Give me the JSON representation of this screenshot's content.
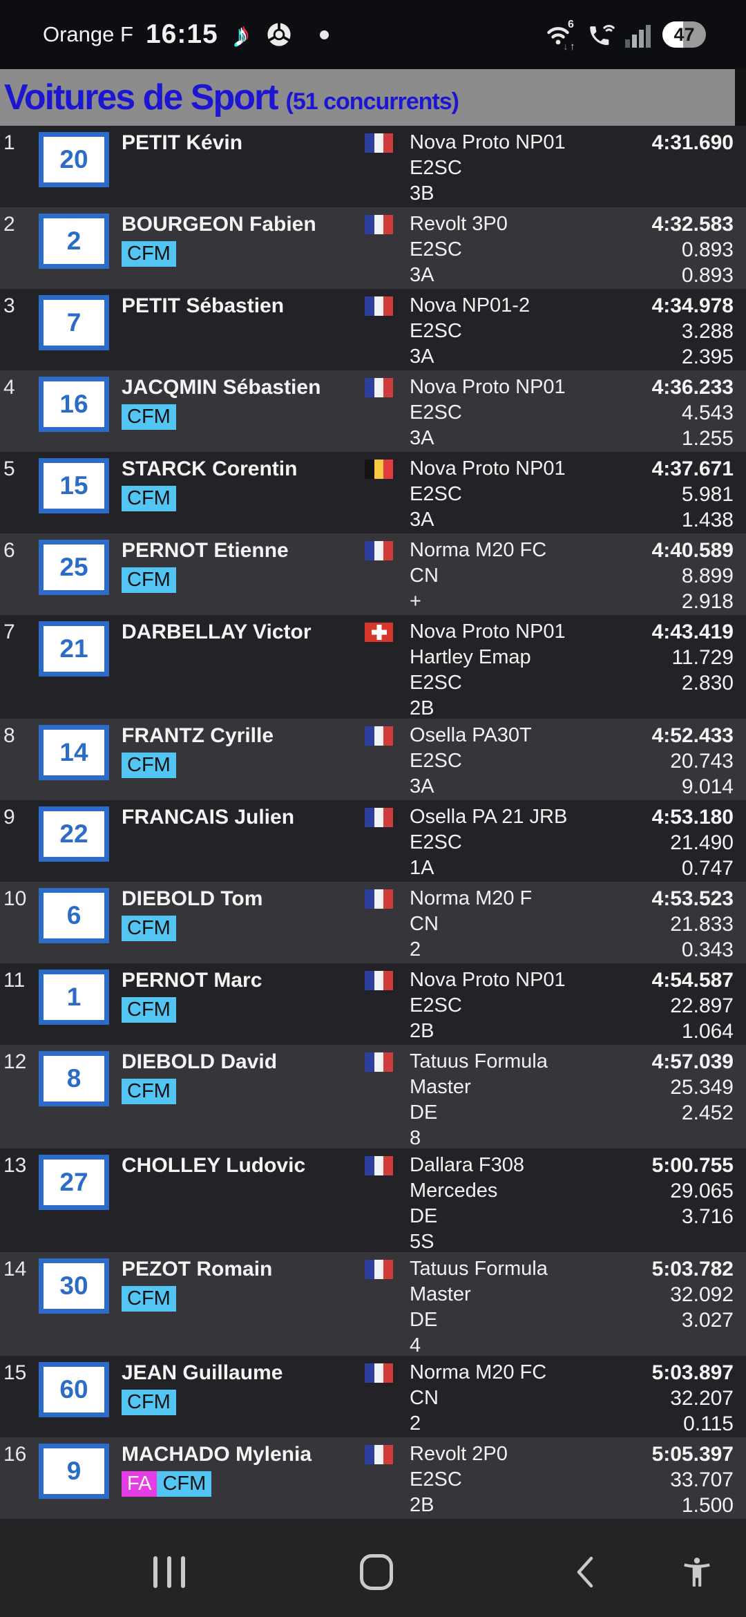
{
  "status_bar": {
    "carrier": "Orange F",
    "time": "16:15",
    "battery_percent": "47",
    "icons": [
      "tiktok-notification-icon",
      "chrome-notification-icon",
      "notification-dot-icon",
      "wifi-6-icon",
      "wifi-calling-icon",
      "signal-strength-icon",
      "battery-indicator"
    ]
  },
  "header": {
    "title": "Voitures de Sport",
    "subtitle": "(51 concurrents)"
  },
  "colors": {
    "accent-blue": "#2b6cc8",
    "header-bg": "#8c8c8c",
    "header-text": "#1c16d1",
    "row-dark": "#232327",
    "row-light": "#35353a",
    "text": "#f2f2f2",
    "status-bg": "#0c0e11",
    "nav-bg": "#242427",
    "nav-icon": "#c9cacc",
    "battery-track": "#9a9a9a"
  },
  "badge_styles": {
    "CFM": {
      "bg": "#52c5f2",
      "fg": "#111111"
    },
    "FA": {
      "bg": "#e53ce5",
      "fg": "#ffffff"
    }
  },
  "flags": {
    "fr": {
      "stripes": [
        "#2d3f9e",
        "#f2f2f2",
        "#d03c3c"
      ]
    },
    "be": {
      "stripes": [
        "#141414",
        "#f5c942",
        "#e23c3c"
      ]
    },
    "ch": {
      "bg": "#d8372c"
    }
  },
  "rows": [
    {
      "pos": "1",
      "num": "20",
      "name": "PETIT Kévin",
      "badges": [],
      "flag": "fr",
      "info_lines": [
        "Nova Proto NP01",
        "E2SC",
        "3B"
      ],
      "time_lines": [
        "4:31.690"
      ]
    },
    {
      "pos": "2",
      "num": "2",
      "name": "BOURGEON Fabien",
      "badges": [
        "CFM"
      ],
      "flag": "fr",
      "info_lines": [
        "Revolt 3P0",
        "E2SC",
        "3A"
      ],
      "time_lines": [
        "4:32.583",
        "0.893",
        "0.893"
      ]
    },
    {
      "pos": "3",
      "num": "7",
      "name": "PETIT Sébastien",
      "badges": [],
      "flag": "fr",
      "info_lines": [
        "Nova NP01-2",
        "E2SC",
        "3A"
      ],
      "time_lines": [
        "4:34.978",
        "3.288",
        "2.395"
      ]
    },
    {
      "pos": "4",
      "num": "16",
      "name": "JACQMIN Sébastien",
      "badges": [
        "CFM"
      ],
      "flag": "fr",
      "info_lines": [
        "Nova Proto NP01",
        "E2SC",
        "3A"
      ],
      "time_lines": [
        "4:36.233",
        "4.543",
        "1.255"
      ]
    },
    {
      "pos": "5",
      "num": "15",
      "name": "STARCK Corentin",
      "badges": [
        "CFM"
      ],
      "flag": "be",
      "info_lines": [
        "Nova Proto NP01",
        "E2SC",
        "3A"
      ],
      "time_lines": [
        "4:37.671",
        "5.981",
        "1.438"
      ]
    },
    {
      "pos": "6",
      "num": "25",
      "name": "PERNOT Etienne",
      "badges": [
        "CFM"
      ],
      "flag": "fr",
      "info_lines": [
        "Norma M20 FC",
        "CN",
        "+"
      ],
      "time_lines": [
        "4:40.589",
        "8.899",
        "2.918"
      ]
    },
    {
      "pos": "7",
      "num": "21",
      "name": "DARBELLAY Victor",
      "badges": [],
      "flag": "ch",
      "info_lines": [
        "Nova Proto NP01",
        "Hartley Emap",
        "E2SC",
        "2B"
      ],
      "time_lines": [
        "4:43.419",
        "11.729",
        "2.830"
      ]
    },
    {
      "pos": "8",
      "num": "14",
      "name": "FRANTZ Cyrille",
      "badges": [
        "CFM"
      ],
      "flag": "fr",
      "info_lines": [
        "Osella PA30T",
        "E2SC",
        "3A"
      ],
      "time_lines": [
        "4:52.433",
        "20.743",
        "9.014"
      ]
    },
    {
      "pos": "9",
      "num": "22",
      "name": "FRANCAIS Julien",
      "badges": [],
      "flag": "fr",
      "info_lines": [
        "Osella PA 21 JRB",
        "E2SC",
        "1A"
      ],
      "time_lines": [
        "4:53.180",
        "21.490",
        "0.747"
      ]
    },
    {
      "pos": "10",
      "num": "6",
      "name": "DIEBOLD Tom",
      "badges": [
        "CFM"
      ],
      "flag": "fr",
      "info_lines": [
        "Norma M20 F",
        "CN",
        "2"
      ],
      "time_lines": [
        "4:53.523",
        "21.833",
        "0.343"
      ]
    },
    {
      "pos": "11",
      "num": "1",
      "name": "PERNOT Marc",
      "badges": [
        "CFM"
      ],
      "flag": "fr",
      "info_lines": [
        "Nova Proto NP01",
        "E2SC",
        "2B"
      ],
      "time_lines": [
        "4:54.587",
        "22.897",
        "1.064"
      ]
    },
    {
      "pos": "12",
      "num": "8",
      "name": "DIEBOLD David",
      "badges": [
        "CFM"
      ],
      "flag": "fr",
      "info_lines": [
        "Tatuus Formula",
        "Master",
        "DE",
        "8"
      ],
      "time_lines": [
        "4:57.039",
        "25.349",
        "2.452"
      ]
    },
    {
      "pos": "13",
      "num": "27",
      "name": "CHOLLEY Ludovic",
      "badges": [],
      "flag": "fr",
      "info_lines": [
        "Dallara F308",
        "Mercedes",
        "DE",
        "5S"
      ],
      "time_lines": [
        "5:00.755",
        "29.065",
        "3.716"
      ]
    },
    {
      "pos": "14",
      "num": "30",
      "name": "PEZOT Romain",
      "badges": [
        "CFM"
      ],
      "flag": "fr",
      "info_lines": [
        "Tatuus Formula",
        "Master",
        "DE",
        "4"
      ],
      "time_lines": [
        "5:03.782",
        "32.092",
        "3.027"
      ]
    },
    {
      "pos": "15",
      "num": "60",
      "name": "JEAN Guillaume",
      "badges": [
        "CFM"
      ],
      "flag": "fr",
      "info_lines": [
        "Norma M20 FC",
        "CN",
        "2"
      ],
      "time_lines": [
        "5:03.897",
        "32.207",
        "0.115"
      ]
    },
    {
      "pos": "16",
      "num": "9",
      "name": "MACHADO Mylenia",
      "badges": [
        "FA",
        "CFM"
      ],
      "flag": "fr",
      "info_lines": [
        "Revolt 2P0",
        "E2SC",
        "2B"
      ],
      "time_lines": [
        "5:05.397",
        "33.707",
        "1.500"
      ]
    }
  ],
  "nav": {
    "items": [
      "recent-apps-button",
      "home-button",
      "back-button",
      "accessibility-button"
    ]
  }
}
